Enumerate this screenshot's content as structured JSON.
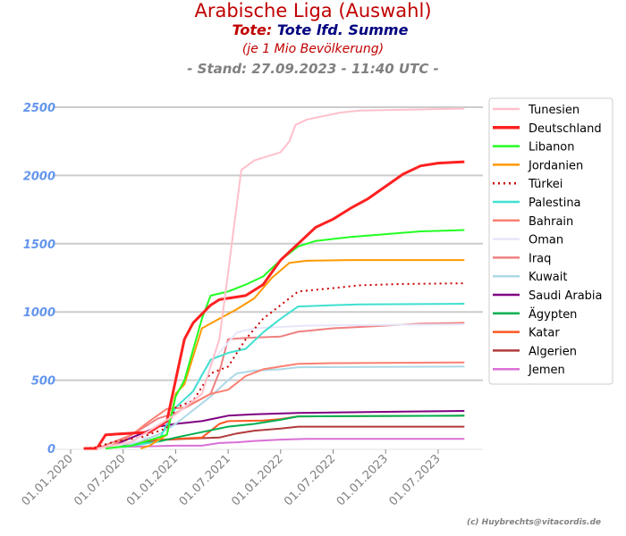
{
  "chart_data": {
    "type": "line",
    "title": "Arabische Liga (Auswahl)",
    "subtitle_prefix": "Tote:",
    "subtitle": "Tote lfd. Summe",
    "subtitle2": "(je 1 Mio Bevölkerung)",
    "stand": "- Stand: 27.09.2023 - 11:40 UTC -",
    "credit": "(c) Huybrechts@vitacordis.de",
    "x_unit": "months since 01.01.2020",
    "xlim": [
      -6,
      47
    ],
    "ylim": [
      0,
      2640
    ],
    "yticks": [
      0,
      500,
      1000,
      1500,
      2000,
      2500
    ],
    "ytick_labels": [
      "0",
      "500",
      "1000",
      "1500",
      "2000",
      "2500"
    ],
    "xticks": [
      0,
      6,
      12,
      18,
      24,
      30,
      36,
      42
    ],
    "xtick_labels": [
      "01.01.2020",
      "01.07.2020",
      "01.01.2021",
      "01.07.2021",
      "01.01.2022",
      "01.07.2022",
      "01.01.2023",
      "01.07.2023"
    ],
    "grid": "horizontal",
    "legend_position": "right",
    "series": [
      {
        "name": "Tunesien",
        "color": "#ffc0cb",
        "width": 2,
        "points": [
          [
            3,
            0
          ],
          [
            7,
            50
          ],
          [
            12,
            250
          ],
          [
            15,
            400
          ],
          [
            17,
            800
          ],
          [
            18,
            1290
          ],
          [
            19.5,
            2040
          ],
          [
            21,
            2110
          ],
          [
            24,
            2170
          ],
          [
            25,
            2250
          ],
          [
            25.7,
            2370
          ],
          [
            27,
            2410
          ],
          [
            30.8,
            2460
          ],
          [
            33,
            2475
          ],
          [
            45,
            2490
          ]
        ]
      },
      {
        "name": "Deutschland",
        "color": "#ff2020",
        "width": 3,
        "points": [
          [
            1.5,
            0
          ],
          [
            3,
            0
          ],
          [
            4,
            100
          ],
          [
            9,
            120
          ],
          [
            11,
            200
          ],
          [
            12,
            500
          ],
          [
            13,
            800
          ],
          [
            14,
            920
          ],
          [
            16,
            1050
          ],
          [
            17,
            1090
          ],
          [
            20,
            1120
          ],
          [
            22,
            1200
          ],
          [
            24,
            1380
          ],
          [
            26,
            1500
          ],
          [
            28,
            1620
          ],
          [
            30,
            1680
          ],
          [
            32,
            1760
          ],
          [
            34,
            1830
          ],
          [
            36,
            1920
          ],
          [
            38,
            2010
          ],
          [
            40,
            2070
          ],
          [
            42,
            2090
          ],
          [
            45,
            2100
          ]
        ]
      },
      {
        "name": "Libanon",
        "color": "#22ff22",
        "width": 2,
        "points": [
          [
            4,
            0
          ],
          [
            7,
            20
          ],
          [
            11,
            100
          ],
          [
            12,
            380
          ],
          [
            13,
            500
          ],
          [
            15,
            950
          ],
          [
            16,
            1120
          ],
          [
            18,
            1150
          ],
          [
            20,
            1200
          ],
          [
            22,
            1260
          ],
          [
            24,
            1380
          ],
          [
            26,
            1480
          ],
          [
            28,
            1520
          ],
          [
            32,
            1550
          ],
          [
            36,
            1570
          ],
          [
            40,
            1590
          ],
          [
            45,
            1600
          ]
        ]
      },
      {
        "name": "Jordanien",
        "color": "#ff9900",
        "width": 2,
        "points": [
          [
            8,
            0
          ],
          [
            9,
            20
          ],
          [
            11,
            100
          ],
          [
            12,
            400
          ],
          [
            13,
            470
          ],
          [
            15,
            880
          ],
          [
            17,
            950
          ],
          [
            19,
            1020
          ],
          [
            21,
            1100
          ],
          [
            23,
            1250
          ],
          [
            25,
            1360
          ],
          [
            27,
            1375
          ],
          [
            32,
            1380
          ],
          [
            45,
            1380
          ]
        ]
      },
      {
        "name": "Türkei",
        "color": "#cc0000",
        "width": 2,
        "dash": "2,4",
        "points": [
          [
            1.5,
            0
          ],
          [
            3,
            10
          ],
          [
            5,
            50
          ],
          [
            8,
            80
          ],
          [
            11,
            150
          ],
          [
            12,
            300
          ],
          [
            14,
            350
          ],
          [
            16,
            550
          ],
          [
            18,
            600
          ],
          [
            20,
            800
          ],
          [
            22,
            950
          ],
          [
            24,
            1050
          ],
          [
            26,
            1150
          ],
          [
            30,
            1175
          ],
          [
            33,
            1195
          ],
          [
            38,
            1205
          ],
          [
            45,
            1210
          ]
        ]
      },
      {
        "name": "Palestina",
        "color": "#40e0d0",
        "width": 2,
        "points": [
          [
            6,
            10
          ],
          [
            10,
            50
          ],
          [
            12,
            300
          ],
          [
            14,
            420
          ],
          [
            16,
            650
          ],
          [
            18,
            700
          ],
          [
            20,
            730
          ],
          [
            22,
            850
          ],
          [
            24,
            950
          ],
          [
            26,
            1040
          ],
          [
            30,
            1050
          ],
          [
            33,
            1055
          ],
          [
            45,
            1060
          ]
        ]
      },
      {
        "name": "Bahrain",
        "color": "#fa8072",
        "width": 2,
        "points": [
          [
            4,
            0
          ],
          [
            7,
            100
          ],
          [
            9,
            200
          ],
          [
            11,
            290
          ],
          [
            13,
            300
          ],
          [
            16,
            400
          ],
          [
            18,
            430
          ],
          [
            20,
            530
          ],
          [
            22,
            580
          ],
          [
            24,
            600
          ],
          [
            26,
            620
          ],
          [
            30,
            625
          ],
          [
            45,
            630
          ]
        ]
      },
      {
        "name": "Oman",
        "color": "#e6e6fa",
        "width": 2,
        "points": [
          [
            4,
            0
          ],
          [
            8,
            60
          ],
          [
            11,
            200
          ],
          [
            13,
            300
          ],
          [
            15,
            550
          ],
          [
            17,
            700
          ],
          [
            19,
            850
          ],
          [
            21,
            880
          ],
          [
            24,
            890
          ],
          [
            27,
            900
          ],
          [
            45,
            910
          ]
        ]
      },
      {
        "name": "Iraq",
        "color": "#f08080",
        "width": 2,
        "points": [
          [
            3,
            0
          ],
          [
            7,
            100
          ],
          [
            10,
            220
          ],
          [
            12,
            260
          ],
          [
            16,
            400
          ],
          [
            17,
            560
          ],
          [
            18,
            800
          ],
          [
            20,
            810
          ],
          [
            24,
            820
          ],
          [
            26,
            855
          ],
          [
            30,
            880
          ],
          [
            36,
            900
          ],
          [
            40,
            915
          ],
          [
            45,
            920
          ]
        ]
      },
      {
        "name": "Kuwait",
        "color": "#add8e6",
        "width": 2,
        "points": [
          [
            6,
            10
          ],
          [
            10,
            100
          ],
          [
            12,
            180
          ],
          [
            16,
            380
          ],
          [
            18,
            500
          ],
          [
            19,
            550
          ],
          [
            21,
            570
          ],
          [
            24,
            580
          ],
          [
            26,
            595
          ],
          [
            45,
            600
          ]
        ]
      },
      {
        "name": "Saudi Arabia",
        "color": "#800080",
        "width": 2,
        "points": [
          [
            4,
            0
          ],
          [
            7,
            80
          ],
          [
            10,
            160
          ],
          [
            12,
            180
          ],
          [
            15,
            200
          ],
          [
            18,
            240
          ],
          [
            21,
            250
          ],
          [
            26,
            260
          ],
          [
            32,
            265
          ],
          [
            38,
            270
          ],
          [
            45,
            275
          ]
        ]
      },
      {
        "name": "Ägypten",
        "color": "#00b050",
        "width": 2,
        "points": [
          [
            5,
            10
          ],
          [
            10,
            50
          ],
          [
            12,
            80
          ],
          [
            15,
            120
          ],
          [
            18,
            160
          ],
          [
            21,
            180
          ],
          [
            24,
            210
          ],
          [
            26,
            235
          ],
          [
            45,
            240
          ]
        ]
      },
      {
        "name": "Katar",
        "color": "#ff5722",
        "width": 2,
        "points": [
          [
            5,
            20
          ],
          [
            9,
            60
          ],
          [
            12,
            70
          ],
          [
            15,
            80
          ],
          [
            17,
            180
          ],
          [
            18,
            200
          ],
          [
            22,
            205
          ],
          [
            24,
            215
          ],
          [
            26,
            235
          ],
          [
            45,
            240
          ]
        ]
      },
      {
        "name": "Algerien",
        "color": "#b03a3a",
        "width": 2,
        "points": [
          [
            5,
            20
          ],
          [
            10,
            60
          ],
          [
            13,
            70
          ],
          [
            17,
            80
          ],
          [
            19,
            110
          ],
          [
            21,
            130
          ],
          [
            24,
            145
          ],
          [
            26,
            160
          ],
          [
            45,
            160
          ]
        ]
      },
      {
        "name": "Jemen",
        "color": "#da70d6",
        "width": 2,
        "points": [
          [
            5,
            10
          ],
          [
            12,
            20
          ],
          [
            15,
            20
          ],
          [
            17,
            40
          ],
          [
            19,
            45
          ],
          [
            21,
            55
          ],
          [
            24,
            65
          ],
          [
            27,
            70
          ],
          [
            45,
            70
          ]
        ]
      }
    ]
  }
}
